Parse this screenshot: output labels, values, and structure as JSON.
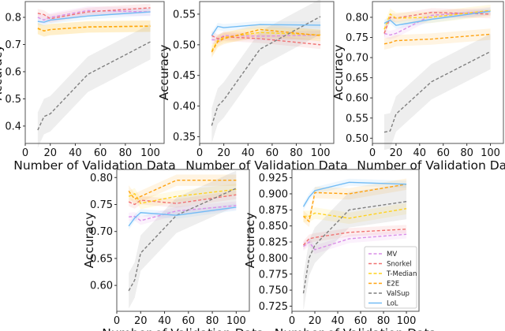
{
  "chart_data": [
    {
      "type": "line",
      "xlabel": "Number of Validation Data",
      "ylabel": "Accuracy",
      "xlim": [
        0,
        111
      ],
      "ylim": [
        0.336,
        0.858
      ],
      "xticks": [
        0,
        20,
        40,
        60,
        80,
        100
      ],
      "yticks": [
        "0.4",
        "0.5",
        "0.6",
        "0.7",
        "0.8"
      ],
      "x": [
        10,
        15,
        20,
        50,
        100
      ],
      "series": [
        {
          "name": "MV",
          "values": [
            0.8,
            0.79,
            0.8,
            0.825,
            0.82
          ]
        },
        {
          "name": "Snorkel",
          "values": [
            0.815,
            0.81,
            0.795,
            0.82,
            0.835
          ]
        },
        {
          "name": "T-Median",
          "values": [
            0.758,
            0.75,
            0.755,
            0.764,
            0.767
          ]
        },
        {
          "name": "E2E",
          "values": [
            0.76,
            0.75,
            0.755,
            0.765,
            0.768
          ]
        },
        {
          "name": "ValSup",
          "values": [
            0.385,
            0.435,
            0.445,
            0.59,
            0.71
          ]
        },
        {
          "name": "LoL",
          "values": [
            0.785,
            0.782,
            0.79,
            0.805,
            0.82
          ]
        }
      ]
    },
    {
      "type": "line",
      "xlabel": "Number of Validation Data",
      "ylabel": "Accuracy",
      "xlim": [
        0,
        111
      ],
      "ylim": [
        0.339,
        0.5705
      ],
      "xticks": [
        0,
        20,
        40,
        60,
        80,
        100
      ],
      "yticks": [
        "0.35",
        "0.40",
        "0.45",
        "0.50",
        "0.55"
      ],
      "x": [
        10,
        15,
        20,
        50,
        100
      ],
      "series": [
        {
          "name": "MV",
          "values": [
            0.508,
            0.508,
            0.515,
            0.514,
            0.516
          ]
        },
        {
          "name": "Snorkel",
          "values": [
            0.515,
            0.51,
            0.513,
            0.51,
            0.5
          ]
        },
        {
          "name": "T-Median",
          "values": [
            0.49,
            0.507,
            0.512,
            0.52,
            0.516
          ]
        },
        {
          "name": "E2E",
          "values": [
            0.488,
            0.505,
            0.51,
            0.525,
            0.515
          ]
        },
        {
          "name": "ValSup",
          "values": [
            0.368,
            0.4,
            0.41,
            0.493,
            0.546
          ]
        },
        {
          "name": "LoL",
          "values": [
            0.515,
            0.53,
            0.528,
            0.533,
            0.532
          ]
        }
      ]
    },
    {
      "type": "line",
      "xlabel": "Number of Validation Data",
      "ylabel": "Accuracy",
      "xlim": [
        0,
        111
      ],
      "ylim": [
        0.487,
        0.839
      ],
      "xticks": [
        0,
        20,
        40,
        60,
        80,
        100
      ],
      "yticks": [
        "0.50",
        "0.55",
        "0.60",
        "0.65",
        "0.70",
        "0.75",
        "0.80"
      ],
      "x": [
        10,
        15,
        20,
        50,
        100
      ],
      "series": [
        {
          "name": "MV",
          "values": [
            0.76,
            0.756,
            0.76,
            0.805,
            0.815
          ]
        },
        {
          "name": "Snorkel",
          "values": [
            0.76,
            0.8,
            0.798,
            0.812,
            0.808
          ]
        },
        {
          "name": "T-Median",
          "values": [
            0.77,
            0.808,
            0.798,
            0.8,
            0.817
          ]
        },
        {
          "name": "E2E",
          "values": [
            0.734,
            0.737,
            0.742,
            0.746,
            0.758
          ]
        },
        {
          "name": "ValSup",
          "values": [
            0.515,
            0.518,
            0.56,
            0.64,
            0.715
          ]
        },
        {
          "name": "LoL",
          "values": [
            0.785,
            0.793,
            0.78,
            0.795,
            0.815
          ]
        }
      ]
    },
    {
      "type": "line",
      "xlabel": "Number of Validation Data",
      "ylabel": "Accuracy",
      "xlim": [
        0,
        111
      ],
      "ylim": [
        0.552,
        0.815
      ],
      "xticks": [
        0,
        20,
        40,
        60,
        80,
        100
      ],
      "yticks": [
        "0.60",
        "0.65",
        "0.70",
        "0.75",
        "0.80"
      ],
      "x": [
        10,
        15,
        20,
        50,
        100
      ],
      "series": [
        {
          "name": "MV",
          "values": [
            0.727,
            0.728,
            0.72,
            0.738,
            0.748
          ]
        },
        {
          "name": "Snorkel",
          "values": [
            0.755,
            0.75,
            0.758,
            0.752,
            0.768
          ]
        },
        {
          "name": "T-Median",
          "values": [
            0.765,
            0.77,
            0.752,
            0.765,
            0.778
          ]
        },
        {
          "name": "E2E",
          "values": [
            0.775,
            0.76,
            0.765,
            0.795,
            0.795
          ]
        },
        {
          "name": "ValSup",
          "values": [
            0.59,
            0.61,
            0.66,
            0.73,
            0.78
          ]
        },
        {
          "name": "LoL",
          "values": [
            0.71,
            0.725,
            0.735,
            0.73,
            0.745
          ]
        }
      ]
    },
    {
      "type": "line",
      "xlabel": "Number of Validation Data",
      "ylabel": "Accuracy",
      "xlim": [
        0,
        111
      ],
      "ylim": [
        0.717,
        0.938
      ],
      "xticks": [
        0,
        20,
        40,
        60,
        80,
        100
      ],
      "yticks": [
        "0.725",
        "0.750",
        "0.775",
        "0.800",
        "0.825",
        "0.850",
        "0.875",
        "0.900",
        "0.925"
      ],
      "x": [
        10,
        15,
        20,
        50,
        100
      ],
      "legend": "lower-right",
      "series": [
        {
          "name": "MV",
          "values": [
            0.818,
            0.825,
            0.813,
            0.83,
            0.837
          ]
        },
        {
          "name": "Snorkel",
          "values": [
            0.82,
            0.83,
            0.832,
            0.84,
            0.845
          ]
        },
        {
          "name": "T-Median",
          "values": [
            0.865,
            0.865,
            0.87,
            0.862,
            0.877
          ]
        },
        {
          "name": "E2E",
          "values": [
            0.865,
            0.857,
            0.902,
            0.9,
            0.915
          ]
        },
        {
          "name": "ValSup",
          "values": [
            0.745,
            0.8,
            0.82,
            0.875,
            0.888
          ]
        },
        {
          "name": "LoL",
          "values": [
            0.88,
            0.895,
            0.905,
            0.918,
            0.915
          ]
        }
      ]
    }
  ],
  "series_styles": {
    "MV": {
      "color": "#da8fe8",
      "dash": "dashed"
    },
    "Snorkel": {
      "color": "#f07272",
      "dash": "dashed"
    },
    "T-Median": {
      "color": "#ffd21f",
      "dash": "dashed"
    },
    "E2E": {
      "color": "#ffa20f",
      "dash": "dashed"
    },
    "ValSup": {
      "color": "#7f7f7f",
      "dash": "dashed"
    },
    "LoL": {
      "color": "#72bcf5",
      "dash": "solid"
    }
  }
}
